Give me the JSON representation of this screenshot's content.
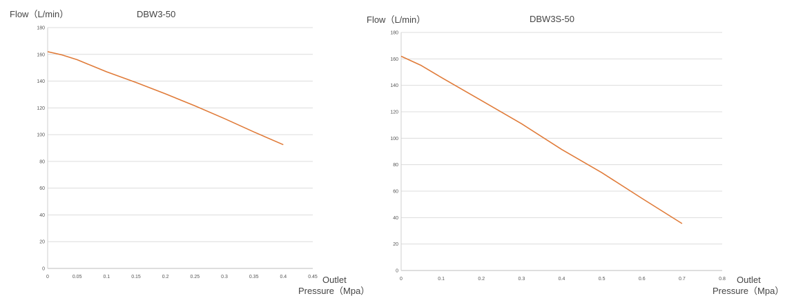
{
  "chart_data": [
    {
      "type": "line",
      "title": "DBW3-50",
      "ylabel": "Flow（L/min）",
      "xlabel_line1": "Outlet",
      "xlabel_line2": "Pressure（Mpa）",
      "xlim": [
        0,
        0.45
      ],
      "ylim": [
        0,
        180
      ],
      "x_ticks": [
        "0",
        "0.05",
        "0.1",
        "0.15",
        "0.2",
        "0.25",
        "0.3",
        "0.35",
        "0.4",
        "0.45"
      ],
      "y_ticks": [
        "0",
        "20",
        "40",
        "60",
        "80",
        "100",
        "120",
        "140",
        "160",
        "180"
      ],
      "grid": true,
      "color": "#E07B39",
      "series": [
        {
          "x": [
            0,
            0.025,
            0.05,
            0.075,
            0.1,
            0.15,
            0.2,
            0.25,
            0.3,
            0.35,
            0.4
          ],
          "y": [
            162,
            159.5,
            156,
            151.5,
            147,
            139,
            130.5,
            121.5,
            112,
            102,
            92.5
          ]
        }
      ]
    },
    {
      "type": "line",
      "title": "DBW3S-50",
      "ylabel": "Flow（L/min）",
      "xlabel_line1": "Outlet",
      "xlabel_line2": "Pressure（Mpa）",
      "xlim": [
        0,
        0.8
      ],
      "ylim": [
        0,
        180
      ],
      "x_ticks": [
        "0",
        "0.1",
        "0.2",
        "0.3",
        "0.4",
        "0.5",
        "0.6",
        "0.7",
        "0.8"
      ],
      "y_ticks": [
        "0",
        "20",
        "40",
        "60",
        "80",
        "100",
        "120",
        "140",
        "160",
        "180"
      ],
      "grid": true,
      "color": "#E07B39",
      "series": [
        {
          "x": [
            0,
            0.05,
            0.1,
            0.2,
            0.3,
            0.4,
            0.5,
            0.6,
            0.7
          ],
          "y": [
            162,
            155,
            146,
            128.5,
            111,
            91.5,
            74,
            54.5,
            35.5
          ]
        }
      ]
    }
  ]
}
